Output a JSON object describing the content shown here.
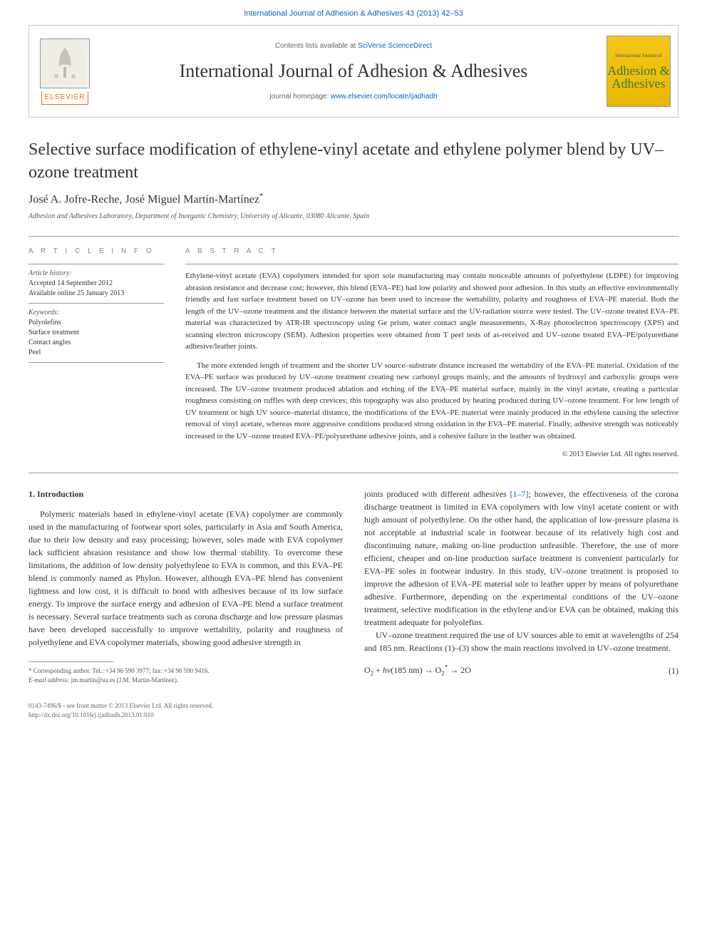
{
  "header": {
    "top_link_citation": "International Journal of Adhesion & Adhesives 43 (2013) 42–53",
    "contents_text": "Contents lists available at ",
    "contents_link": "SciVerse ScienceDirect",
    "journal_title": "International Journal of Adhesion & Adhesives",
    "homepage_text": "journal homepage: ",
    "homepage_link": "www.elsevier.com/locate/ijadhadh",
    "publisher_name": "ELSEVIER",
    "cover_text_1": "Adhesion &",
    "cover_text_2": "Adhesives"
  },
  "article": {
    "title": "Selective surface modification of ethylene-vinyl acetate and ethylene polymer blend by UV–ozone treatment",
    "authors": "José A. Jofre-Reche, José Miguel Martín-Martínez",
    "corr_marker": "*",
    "affiliation": "Adhesion and Adhesives Laboratory, Department of Inorganic Chemistry, University of Alicante, 03080 Alicante, Spain"
  },
  "info": {
    "heading": "A R T I C L E   I N F O",
    "history_label": "Article history:",
    "accepted": "Accepted 14 September 2012",
    "online": "Available online 25 January 2013",
    "keywords_label": "Keywords:",
    "keywords": [
      "Polyolefins",
      "Surface treatment",
      "Contact angles",
      "Peel"
    ]
  },
  "abstract": {
    "heading": "A B S T R A C T",
    "p1": "Ethylene-vinyl acetate (EVA) copolymers intended for sport sole manufacturing may contain noticeable amounts of polyethylene (LDPE) for improving abrasion resistance and decrease cost; however, this blend (EVA–PE) had low polarity and showed poor adhesion. In this study an effective environmentally friendly and fast surface treatment based on UV–ozone has been used to increase the wettability, polarity and roughness of EVA–PE material. Both the length of the UV–ozone treatment and the distance between the material surface and the UV-radiation source were tested. The UV–ozone treated EVA–PE material was characterized by ATR-IR spectroscopy using Ge prism, water contact angle measurements, X-Ray photoelectron spectroscopy (XPS) and scanning electron microscopy (SEM). Adhesion properties were obtained from T peel tests of as-received and UV–ozone treated EVA–PE/polyurethane adhesive/leather joints.",
    "p2": "The more extended length of treatment and the shorter UV source–substrate distance increased the wettability of the EVA–PE material. Oxidation of the EVA–PE surface was produced by UV–ozone treatment creating new carbonyl groups mainly, and the amounts of hydroxyl and carboxylic groups were increased. The UV–ozone treatment produced ablation and etching of the EVA–PE material surface, mainly in the vinyl acetate, creating a particular roughness consisting on ruffles with deep crevices; this topography was also produced by heating produced during UV–ozone treatment. For low length of UV treatment or high UV source–material distance, the modifications of the EVA–PE material were mainly produced in the ethylene causing the selective removal of vinyl acetate, whereas more aggressive conditions produced strong oxidation in the EVA–PE material. Finally, adhesive strength was noticeably increased in the UV–ozone treated EVA–PE/polyurethane adhesive joints, and a cohesive failure in the leather was obtained.",
    "copyright": "© 2013 Elsevier Ltd. All rights reserved."
  },
  "body": {
    "section1_heading": "1. Introduction",
    "col1_p1": "Polymeric materials based in ethylene-vinyl acetate (EVA) copolymer are commonly used in the manufacturing of footwear sport soles, particularly in Asia and South America, due to their low density and easy processing; however, soles made with EVA copolymer lack sufficient abrasion resistance and show low thermal stability. To overcome these limitations, the addition of low density polyethylene to EVA is common, and this EVA–PE blend is commonly named as Phylon. However, although EVA–PE blend has convenient lightness and low cost, it is difficult to bond with adhesives because of its low surface energy. To improve the surface energy and adhesion of EVA–PE blend a surface treatment is necessary. Several surface treatments such as corona discharge and low pressure plasmas have been developed successfully to improve wettability, polarity and roughness of polyethylene and EVA copolymer materials, showing good adhesive strength in",
    "col2_pre_ref": "joints produced with different adhesives ",
    "col2_ref": "[1–7]",
    "col2_post_ref": "; however, the effectiveness of the corona discharge treatment is limited in EVA copolymers with low vinyl acetate content or with high amount of polyethylene. On the other hand, the application of low-pressure plasma is not acceptable at industrial scale in footwear because of its relatively high cost and discontinuing nature, making on-line production unfeasible. Therefore, the use of more efficient, cheaper and on-line production surface treatment is convenient particularly for EVA–PE soles in footwear industry. In this study, UV–ozone treatment is proposed to improve the adhesion of EVA–PE material sole to leather upper by means of polyurethane adhesive. Furthermore, depending on the experimental conditions of the UV–ozone treatment, selective modification in the ethylene and/or EVA can be obtained, making this treatment adequate for polyolefins.",
    "col2_p2": "UV–ozone treatment required the use of UV sources able to emit at wavelengths of 254 and 185 nm. Reactions (1)–(3) show the main reactions involved in UV–ozone treatment.",
    "eq1_html": "O<sub>2</sub> + <i>hν</i>(185 nm) → O<sub>2</sub><sup>*</sup> → 2O",
    "eq1_num": "(1)"
  },
  "footnote": {
    "corr": "* Corresponding author. Tel.: +34 96 590 3977; fax: +34 96 590 9416.",
    "email_label": "E-mail address: ",
    "email": "jm.martin@ua.es",
    "email_name": " (J.M. Martín-Martínez)."
  },
  "footer": {
    "issn_line": "0143-7496/$ - see front matter © 2013 Elsevier Ltd. All rights reserved.",
    "doi_line": "http://dx.doi.org/10.1016/j.ijadhadh.2013.01.010"
  },
  "colors": {
    "link": "#0066cc",
    "text": "#333333",
    "muted": "#888888",
    "rule": "#999999",
    "elsevier_orange": "#ff6600"
  }
}
